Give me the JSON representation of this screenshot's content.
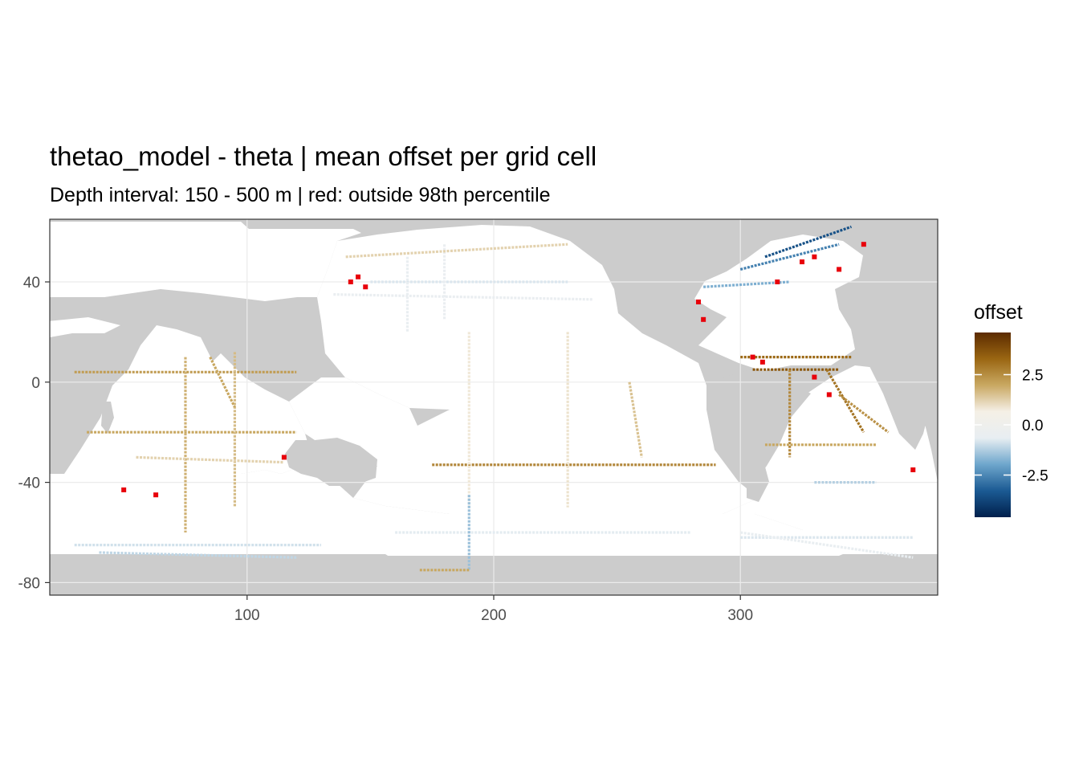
{
  "title": "thetao_model - theta  | mean offset per grid cell",
  "subtitle": "Depth interval: 150 - 500 m | red: outside 98th percentile",
  "colors": {
    "land": "#cccccc",
    "ocean": "#ffffff",
    "outlier": "#e8000b",
    "scale": [
      "#00204c",
      "#1b5a93",
      "#6ea6cc",
      "#e8eef2",
      "#f5f0e6",
      "#c9a862",
      "#9a6612",
      "#5c2b00"
    ]
  },
  "chart_data": {
    "type": "heatmap",
    "title": "thetao_model - theta  | mean offset per grid cell",
    "subtitle": "Depth interval: 150 - 500 m | red: outside 98th percentile",
    "xlabel": "",
    "ylabel": "",
    "xlim": [
      20,
      380
    ],
    "ylim": [
      -85,
      65
    ],
    "x_ticks": [
      100,
      200,
      300
    ],
    "x_tick_labels": [
      "100",
      "200",
      "300"
    ],
    "y_ticks": [
      40,
      0,
      -40,
      -80
    ],
    "y_tick_labels": [
      "40",
      "0",
      "-40",
      "-80"
    ],
    "grid": true,
    "legend": {
      "title": "offset",
      "position": "right",
      "range": [
        -4.6,
        4.6
      ],
      "breaks": [
        2.5,
        0.0,
        -2.5
      ],
      "break_labels": [
        "2.5",
        "0.0",
        "-2.5"
      ]
    },
    "tracks": [
      {
        "from": [
          30,
          4
        ],
        "to": [
          120,
          4
        ],
        "v": 2.2
      },
      {
        "from": [
          35,
          -20
        ],
        "to": [
          120,
          -20
        ],
        "v": 2.0
      },
      {
        "from": [
          75,
          10
        ],
        "to": [
          75,
          -60
        ],
        "v": 1.8
      },
      {
        "from": [
          95,
          12
        ],
        "to": [
          95,
          -50
        ],
        "v": 1.6
      },
      {
        "from": [
          85,
          10
        ],
        "to": [
          95,
          -10
        ],
        "v": 2.0
      },
      {
        "from": [
          55,
          -30
        ],
        "to": [
          115,
          -32
        ],
        "v": 1.2
      },
      {
        "from": [
          175,
          -33
        ],
        "to": [
          290,
          -33
        ],
        "v": 2.6
      },
      {
        "from": [
          190,
          20
        ],
        "to": [
          190,
          -50
        ],
        "v": 0.8
      },
      {
        "from": [
          230,
          20
        ],
        "to": [
          230,
          -50
        ],
        "v": 0.9
      },
      {
        "from": [
          255,
          0
        ],
        "to": [
          260,
          -30
        ],
        "v": 1.5
      },
      {
        "from": [
          150,
          40
        ],
        "to": [
          230,
          40
        ],
        "v": -0.8
      },
      {
        "from": [
          135,
          35
        ],
        "to": [
          240,
          33
        ],
        "v": -0.5
      },
      {
        "from": [
          165,
          50
        ],
        "to": [
          165,
          20
        ],
        "v": -0.6
      },
      {
        "from": [
          180,
          55
        ],
        "to": [
          180,
          25
        ],
        "v": -0.5
      },
      {
        "from": [
          140,
          50
        ],
        "to": [
          230,
          55
        ],
        "v": 1.2
      },
      {
        "from": [
          300,
          10
        ],
        "to": [
          345,
          10
        ],
        "v": 3.2
      },
      {
        "from": [
          305,
          5
        ],
        "to": [
          340,
          5
        ],
        "v": 3.6
      },
      {
        "from": [
          320,
          5
        ],
        "to": [
          320,
          -30
        ],
        "v": 2.6
      },
      {
        "from": [
          335,
          5
        ],
        "to": [
          350,
          -20
        ],
        "v": 3.0
      },
      {
        "from": [
          340,
          -5
        ],
        "to": [
          360,
          -20
        ],
        "v": 2.4
      },
      {
        "from": [
          310,
          -25
        ],
        "to": [
          355,
          -25
        ],
        "v": 2.0
      },
      {
        "from": [
          300,
          45
        ],
        "to": [
          340,
          55
        ],
        "v": -2.6
      },
      {
        "from": [
          310,
          50
        ],
        "to": [
          345,
          62
        ],
        "v": -3.5
      },
      {
        "from": [
          285,
          38
        ],
        "to": [
          320,
          40
        ],
        "v": -1.8
      },
      {
        "from": [
          30,
          -65
        ],
        "to": [
          130,
          -65
        ],
        "v": -0.9
      },
      {
        "from": [
          40,
          -68
        ],
        "to": [
          120,
          -70
        ],
        "v": -1.1
      },
      {
        "from": [
          160,
          -60
        ],
        "to": [
          280,
          -60
        ],
        "v": -0.7
      },
      {
        "from": [
          190,
          -45
        ],
        "to": [
          190,
          -75
        ],
        "v": -1.5
      },
      {
        "from": [
          300,
          -62
        ],
        "to": [
          370,
          -62
        ],
        "v": -0.8
      },
      {
        "from": [
          300,
          -60
        ],
        "to": [
          370,
          -70
        ],
        "v": -0.6
      },
      {
        "from": [
          170,
          -75
        ],
        "to": [
          190,
          -75
        ],
        "v": 2.0
      },
      {
        "from": [
          330,
          -40
        ],
        "to": [
          355,
          -40
        ],
        "v": -1.2
      }
    ],
    "outliers": [
      [
        142,
        40
      ],
      [
        148,
        38
      ],
      [
        145,
        42
      ],
      [
        115,
        -30
      ],
      [
        50,
        -43
      ],
      [
        63,
        -45
      ],
      [
        305,
        10
      ],
      [
        309,
        8
      ],
      [
        330,
        2
      ],
      [
        336,
        -5
      ],
      [
        315,
        40
      ],
      [
        325,
        48
      ],
      [
        330,
        50
      ],
      [
        340,
        45
      ],
      [
        350,
        55
      ],
      [
        285,
        25
      ],
      [
        283,
        32
      ],
      [
        370,
        -35
      ]
    ]
  }
}
